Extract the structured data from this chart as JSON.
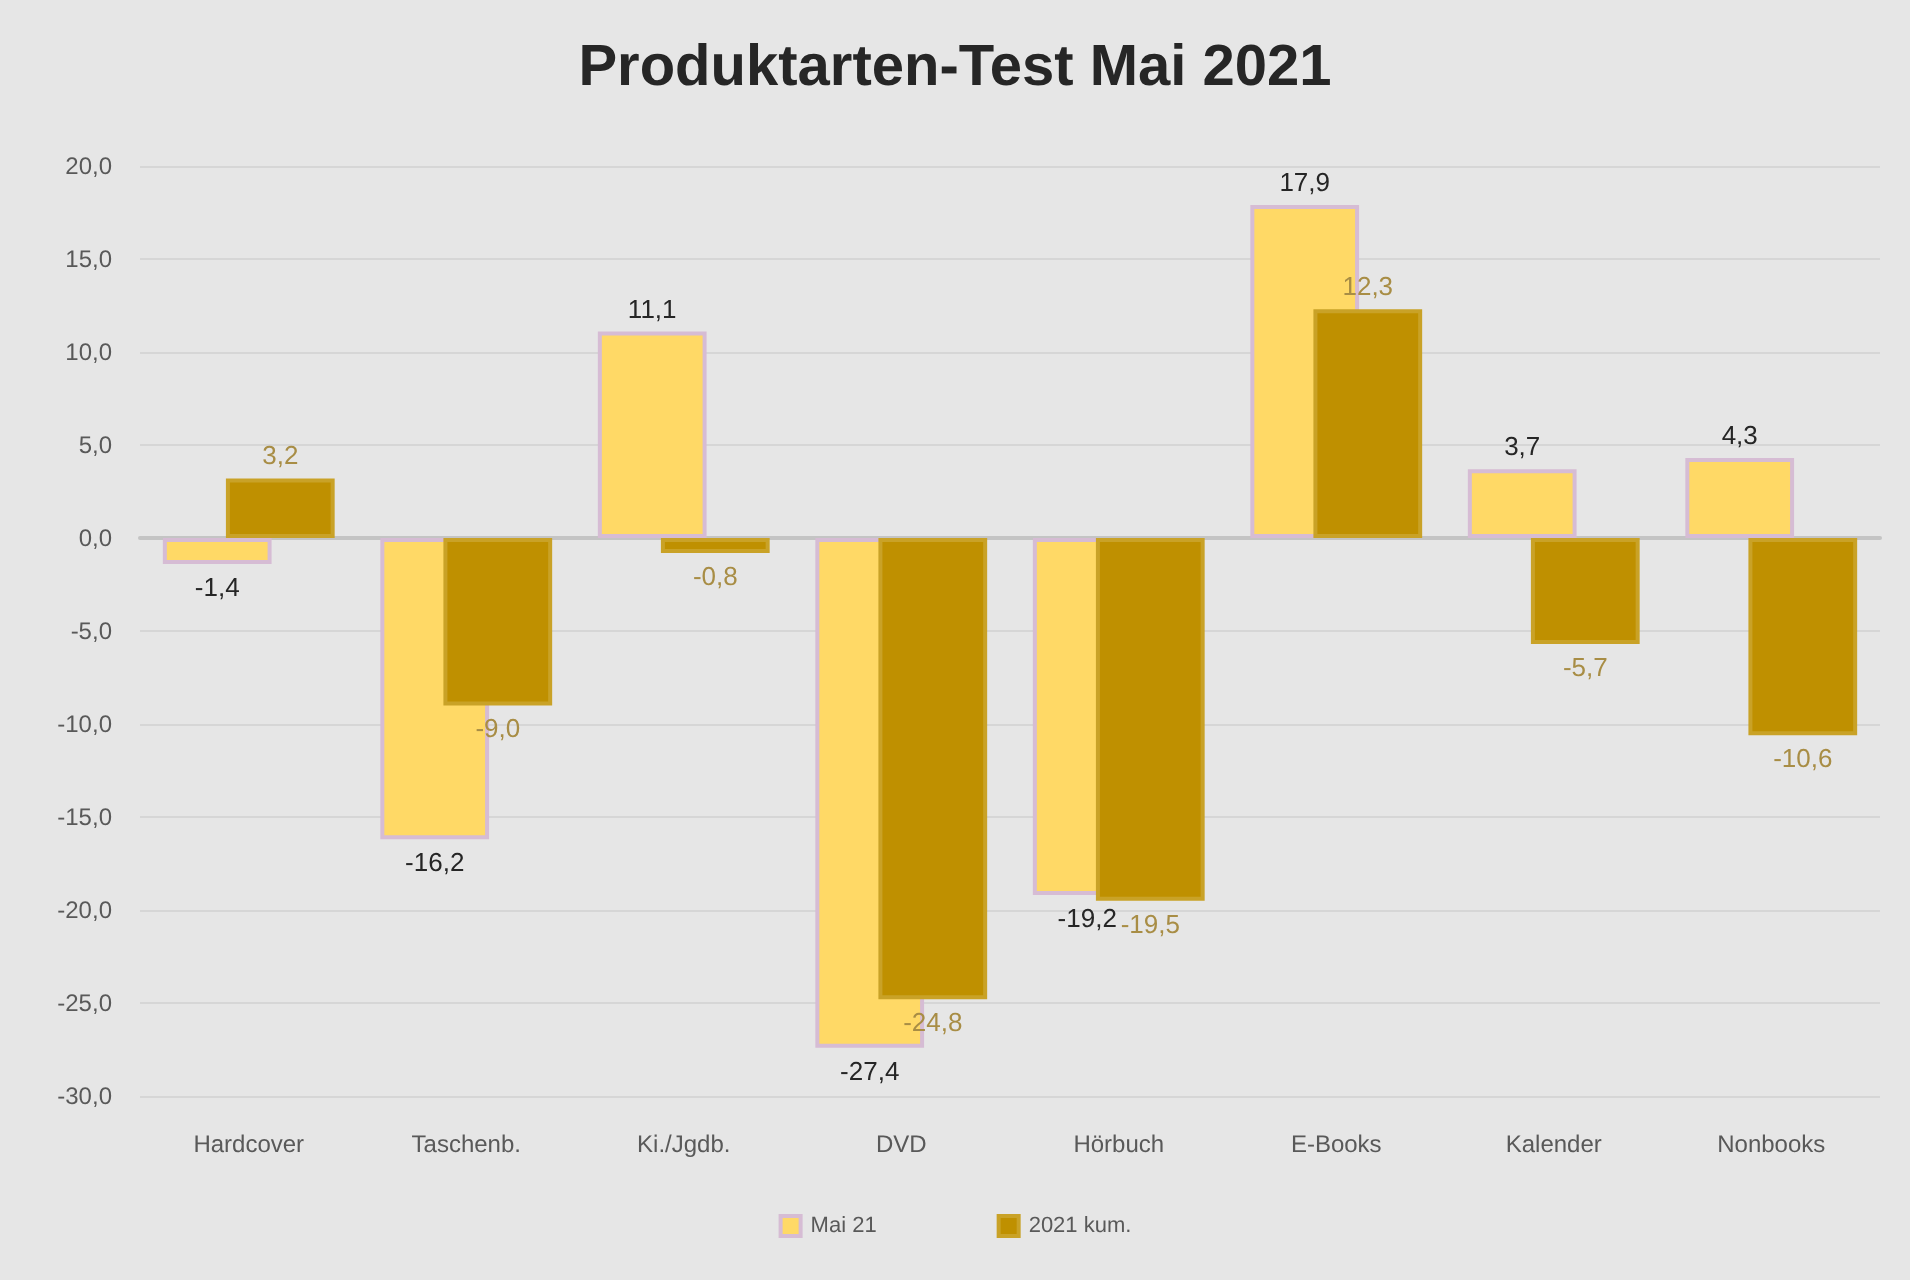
{
  "chart_data": {
    "type": "bar",
    "title": "Produktarten-Test Mai 2021",
    "categories": [
      "Hardcover",
      "Taschenb.",
      "Ki./Jgdb.",
      "DVD",
      "Hörbuch",
      "E-Books",
      "Kalender",
      "Nonbooks"
    ],
    "series": [
      {
        "name": "Mai 21",
        "color": "#ffd966",
        "values": [
          -1.4,
          -16.2,
          11.1,
          -27.4,
          -19.2,
          17.9,
          3.7,
          4.3
        ],
        "value_labels": [
          "-1,4",
          "-16,2",
          "11,1",
          "-27,4",
          "-19,2",
          "17,9",
          "3,7",
          "4,3"
        ]
      },
      {
        "name": "2021 kum.",
        "color": "#bf9000",
        "values": [
          3.2,
          -9.0,
          -0.8,
          -24.8,
          -19.5,
          12.3,
          -5.7,
          -10.6
        ],
        "value_labels": [
          "3,2",
          "-9,0",
          "-0,8",
          "-24,8",
          "-19,5",
          "12,3",
          "-5,7",
          "-10,6"
        ]
      }
    ],
    "ylim": [
      -30,
      20
    ],
    "yticks": [
      {
        "value": -30,
        "label": "-30,0"
      },
      {
        "value": -25,
        "label": "-25,0"
      },
      {
        "value": -20,
        "label": "-20,0"
      },
      {
        "value": -15,
        "label": "-15,0"
      },
      {
        "value": -10,
        "label": "-10,0"
      },
      {
        "value": -5,
        "label": "-5,0"
      },
      {
        "value": 0,
        "label": "0,0"
      },
      {
        "value": 5,
        "label": "5,0"
      },
      {
        "value": 10,
        "label": "10,0"
      },
      {
        "value": 15,
        "label": "15,0"
      },
      {
        "value": 20,
        "label": "20,0"
      }
    ],
    "grid": "y",
    "legend": "bottom"
  }
}
